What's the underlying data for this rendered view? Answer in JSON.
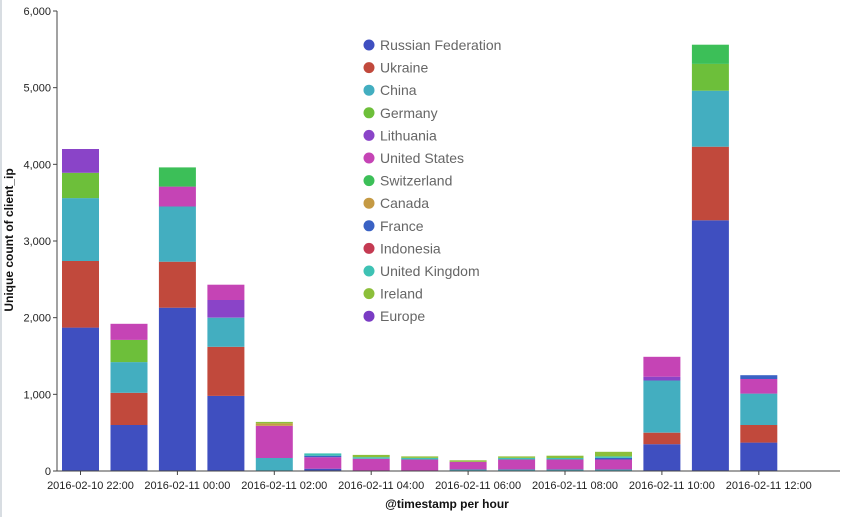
{
  "chart_data": {
    "type": "bar",
    "stacked": true,
    "xlabel": "@timestamp per hour",
    "ylabel": "Unique count of client_ip",
    "ylim": [
      0,
      6000
    ],
    "yticks": [
      "0",
      "1,000",
      "2,000",
      "3,000",
      "4,000",
      "5,000",
      "6,000"
    ],
    "ytick_values": [
      0,
      1000,
      2000,
      3000,
      4000,
      5000,
      6000
    ],
    "grid": false,
    "legend_position": "top-center",
    "x": [
      "2016-02-10 22:00",
      "2016-02-10 23:00",
      "2016-02-11 00:00",
      "2016-02-11 01:00",
      "2016-02-11 02:00",
      "2016-02-11 03:00",
      "2016-02-11 04:00",
      "2016-02-11 05:00",
      "2016-02-11 06:00",
      "2016-02-11 07:00",
      "2016-02-11 08:00",
      "2016-02-11 09:00",
      "2016-02-11 10:00",
      "2016-02-11 11:00",
      "2016-02-11 12:00",
      "2016-02-11 13:00"
    ],
    "x_tick_labels": [
      {
        "label": "2016-02-10 22:00",
        "index": 0
      },
      {
        "label": "2016-02-11 00:00",
        "index": 2
      },
      {
        "label": "2016-02-11 02:00",
        "index": 4
      },
      {
        "label": "2016-02-11 04:00",
        "index": 6
      },
      {
        "label": "2016-02-11 06:00",
        "index": 8
      },
      {
        "label": "2016-02-11 08:00",
        "index": 10
      },
      {
        "label": "2016-02-11 10:00",
        "index": 12
      },
      {
        "label": "2016-02-11 12:00",
        "index": 14
      }
    ],
    "series": [
      {
        "name": "Russian Federation",
        "color": "#3f4fc0",
        "values": [
          1870,
          600,
          2130,
          980,
          0,
          30,
          0,
          0,
          0,
          0,
          0,
          0,
          350,
          3270,
          370,
          0
        ]
      },
      {
        "name": "Ukraine",
        "color": "#c1493c",
        "values": [
          870,
          420,
          600,
          640,
          0,
          0,
          0,
          0,
          0,
          0,
          0,
          0,
          150,
          960,
          230,
          0
        ]
      },
      {
        "name": "China",
        "color": "#43aec0",
        "values": [
          820,
          400,
          720,
          380,
          170,
          0,
          0,
          0,
          20,
          20,
          20,
          20,
          680,
          730,
          410,
          0
        ]
      },
      {
        "name": "Germany",
        "color": "#6dbf3a",
        "values": [
          330,
          290,
          0,
          0,
          0,
          0,
          0,
          0,
          0,
          0,
          0,
          0,
          0,
          350,
          0,
          0
        ]
      },
      {
        "name": "Lithuania",
        "color": "#8a44c8",
        "values": [
          310,
          0,
          0,
          230,
          0,
          0,
          0,
          0,
          0,
          0,
          0,
          0,
          50,
          0,
          0,
          0
        ]
      },
      {
        "name": "United States",
        "color": "#c544b5",
        "values": [
          0,
          210,
          260,
          200,
          420,
          150,
          160,
          150,
          100,
          130,
          130,
          130,
          260,
          0,
          190,
          0
        ]
      },
      {
        "name": "Switzerland",
        "color": "#3cbf58",
        "values": [
          0,
          0,
          250,
          0,
          0,
          0,
          0,
          0,
          0,
          0,
          0,
          0,
          0,
          250,
          0,
          0
        ]
      },
      {
        "name": "Canada",
        "color": "#c59a44",
        "values": [
          0,
          0,
          0,
          0,
          30,
          0,
          0,
          0,
          0,
          0,
          0,
          0,
          0,
          0,
          0,
          0
        ]
      },
      {
        "name": "France",
        "color": "#3a62c4",
        "values": [
          0,
          0,
          0,
          0,
          0,
          20,
          0,
          0,
          0,
          0,
          0,
          20,
          0,
          0,
          50,
          0
        ]
      },
      {
        "name": "Indonesia",
        "color": "#c43a52",
        "values": [
          0,
          0,
          0,
          0,
          0,
          0,
          0,
          0,
          0,
          0,
          0,
          0,
          0,
          0,
          0,
          0
        ]
      },
      {
        "name": "United Kingdom",
        "color": "#3ec2b4",
        "values": [
          0,
          0,
          0,
          0,
          0,
          30,
          20,
          20,
          0,
          20,
          20,
          20,
          0,
          0,
          0,
          0
        ]
      },
      {
        "name": "Ireland",
        "color": "#8cbf3a",
        "values": [
          0,
          0,
          0,
          0,
          20,
          0,
          30,
          20,
          20,
          20,
          30,
          60,
          0,
          0,
          0,
          0
        ]
      },
      {
        "name": "Europe",
        "color": "#7a3cc4",
        "values": [
          0,
          0,
          0,
          0,
          0,
          0,
          0,
          0,
          0,
          0,
          0,
          0,
          0,
          0,
          0,
          0
        ]
      }
    ]
  }
}
